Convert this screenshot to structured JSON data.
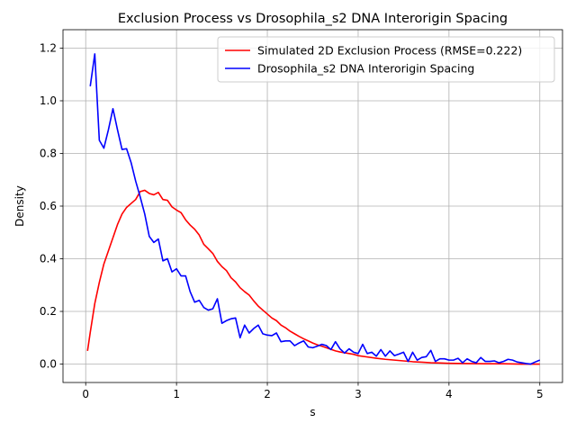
{
  "chart_data": {
    "type": "line",
    "title": "Exclusion Process vs Drosophila_s2 DNA Interorigin Spacing",
    "xlabel": "s",
    "ylabel": "Density",
    "xlim": [
      -0.25,
      5.25
    ],
    "ylim": [
      -0.07,
      1.27
    ],
    "xticks": [
      0,
      1,
      2,
      3,
      4,
      5
    ],
    "yticks": [
      0.0,
      0.2,
      0.4,
      0.6,
      0.8,
      1.0,
      1.2
    ],
    "xtick_labels": [
      "0",
      "1",
      "2",
      "3",
      "4",
      "5"
    ],
    "ytick_labels": [
      "0.0",
      "0.2",
      "0.4",
      "0.6",
      "0.8",
      "1.0",
      "1.2"
    ],
    "grid": true,
    "legend_position": "top-right",
    "series": [
      {
        "name": "Simulated 2D Exclusion Process (RMSE=0.222)",
        "color": "#ff0000",
        "x": [
          0.02,
          0.05,
          0.1,
          0.15,
          0.2,
          0.25,
          0.3,
          0.35,
          0.4,
          0.45,
          0.5,
          0.55,
          0.6,
          0.65,
          0.7,
          0.75,
          0.8,
          0.85,
          0.9,
          0.95,
          1.0,
          1.05,
          1.1,
          1.15,
          1.2,
          1.25,
          1.3,
          1.35,
          1.4,
          1.45,
          1.5,
          1.55,
          1.6,
          1.65,
          1.7,
          1.75,
          1.8,
          1.85,
          1.9,
          1.95,
          2.0,
          2.05,
          2.1,
          2.15,
          2.2,
          2.25,
          2.3,
          2.35,
          2.4,
          2.45,
          2.5,
          2.55,
          2.6,
          2.65,
          2.7,
          2.75,
          2.8,
          2.85,
          2.9,
          2.95,
          3.0,
          3.1,
          3.2,
          3.3,
          3.4,
          3.5,
          3.6,
          3.7,
          3.8,
          3.9,
          4.0,
          4.2,
          4.4,
          4.6,
          4.8,
          5.0
        ],
        "values": [
          0.05,
          0.12,
          0.23,
          0.31,
          0.38,
          0.43,
          0.48,
          0.53,
          0.57,
          0.595,
          0.61,
          0.625,
          0.655,
          0.66,
          0.648,
          0.643,
          0.652,
          0.625,
          0.622,
          0.597,
          0.585,
          0.575,
          0.548,
          0.528,
          0.512,
          0.49,
          0.455,
          0.438,
          0.42,
          0.39,
          0.37,
          0.355,
          0.328,
          0.312,
          0.29,
          0.275,
          0.262,
          0.24,
          0.22,
          0.205,
          0.19,
          0.175,
          0.165,
          0.148,
          0.138,
          0.125,
          0.115,
          0.105,
          0.096,
          0.088,
          0.08,
          0.073,
          0.068,
          0.062,
          0.056,
          0.05,
          0.046,
          0.043,
          0.04,
          0.037,
          0.032,
          0.027,
          0.022,
          0.018,
          0.015,
          0.012,
          0.009,
          0.007,
          0.005,
          0.004,
          0.003,
          0.002,
          0.001,
          0.001,
          0.0,
          0.0
        ]
      },
      {
        "name": "Drosophila_s2 DNA Interorigin Spacing",
        "color": "#0000ff",
        "x": [
          0.05,
          0.1,
          0.15,
          0.2,
          0.25,
          0.3,
          0.35,
          0.4,
          0.45,
          0.5,
          0.55,
          0.6,
          0.65,
          0.7,
          0.75,
          0.8,
          0.85,
          0.9,
          0.95,
          1.0,
          1.05,
          1.1,
          1.15,
          1.2,
          1.25,
          1.3,
          1.35,
          1.4,
          1.45,
          1.5,
          1.55,
          1.6,
          1.65,
          1.7,
          1.75,
          1.8,
          1.85,
          1.9,
          1.95,
          2.0,
          2.05,
          2.1,
          2.15,
          2.2,
          2.25,
          2.3,
          2.35,
          2.4,
          2.45,
          2.5,
          2.55,
          2.6,
          2.65,
          2.7,
          2.75,
          2.8,
          2.85,
          2.9,
          2.95,
          3.0,
          3.05,
          3.1,
          3.15,
          3.2,
          3.25,
          3.3,
          3.35,
          3.4,
          3.45,
          3.5,
          3.55,
          3.6,
          3.65,
          3.7,
          3.75,
          3.8,
          3.85,
          3.9,
          3.95,
          4.0,
          4.05,
          4.1,
          4.15,
          4.2,
          4.25,
          4.3,
          4.35,
          4.4,
          4.45,
          4.5,
          4.55,
          4.6,
          4.65,
          4.7,
          4.75,
          4.8,
          4.85,
          4.9,
          4.95,
          5.0
        ],
        "values": [
          1.055,
          1.178,
          0.85,
          0.82,
          0.89,
          0.97,
          0.89,
          0.815,
          0.818,
          0.765,
          0.695,
          0.635,
          0.57,
          0.485,
          0.462,
          0.475,
          0.392,
          0.4,
          0.35,
          0.362,
          0.335,
          0.335,
          0.275,
          0.235,
          0.242,
          0.215,
          0.205,
          0.21,
          0.248,
          0.155,
          0.165,
          0.172,
          0.175,
          0.1,
          0.148,
          0.118,
          0.135,
          0.148,
          0.115,
          0.11,
          0.108,
          0.118,
          0.085,
          0.088,
          0.088,
          0.07,
          0.08,
          0.088,
          0.065,
          0.062,
          0.068,
          0.075,
          0.07,
          0.055,
          0.085,
          0.058,
          0.042,
          0.058,
          0.045,
          0.04,
          0.075,
          0.04,
          0.045,
          0.03,
          0.055,
          0.03,
          0.05,
          0.032,
          0.038,
          0.045,
          0.01,
          0.045,
          0.015,
          0.025,
          0.028,
          0.052,
          0.01,
          0.02,
          0.02,
          0.015,
          0.015,
          0.022,
          0.005,
          0.02,
          0.01,
          0.005,
          0.025,
          0.01,
          0.01,
          0.012,
          0.005,
          0.01,
          0.018,
          0.015,
          0.008,
          0.005,
          0.002,
          0.0,
          0.008,
          0.015
        ]
      }
    ]
  }
}
